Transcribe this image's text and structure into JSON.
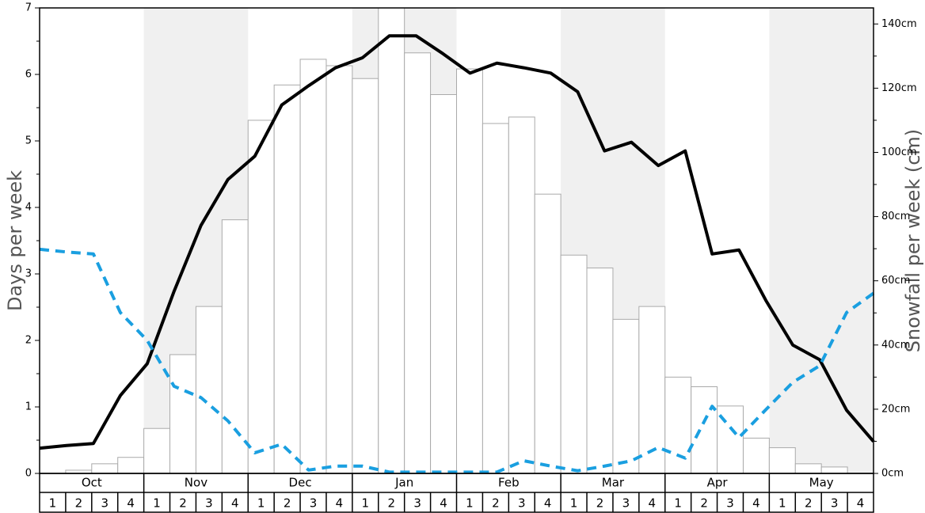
{
  "chart_data": {
    "type": "bar-line",
    "y_label": "Days per week",
    "y2_label": "Snowfall per week (cm)",
    "months": [
      "Oct",
      "Nov",
      "Dec",
      "Jan",
      "Feb",
      "Mar",
      "Apr",
      "May"
    ],
    "categories": [
      "1",
      "2",
      "3",
      "4",
      "1",
      "2",
      "3",
      "4",
      "1",
      "2",
      "3",
      "4",
      "1",
      "2",
      "3",
      "4",
      "1",
      "2",
      "3",
      "4",
      "1",
      "2",
      "3",
      "4",
      "1",
      "2",
      "3",
      "4",
      "1",
      "2",
      "3",
      "4"
    ],
    "ylim": [
      0,
      7
    ],
    "yticks": [
      0,
      1,
      2,
      3,
      4,
      5,
      6,
      7
    ],
    "y2lim": [
      0,
      145
    ],
    "y2ticks": [
      {
        "value": 0,
        "label": "0cm"
      },
      {
        "value": 20,
        "label": "20cm"
      },
      {
        "value": 40,
        "label": "40cm"
      },
      {
        "value": 60,
        "label": "60cm"
      },
      {
        "value": 80,
        "label": "80cm"
      },
      {
        "value": 100,
        "label": "100cm"
      },
      {
        "value": 120,
        "label": "120cm"
      },
      {
        "value": 140,
        "label": "140cm"
      }
    ],
    "series": [
      {
        "type": "bar",
        "axis": "y2",
        "color": "#ffffff",
        "values": [
          0,
          1,
          3,
          5,
          14,
          37,
          52,
          79,
          110,
          121,
          129,
          127,
          123,
          145,
          131,
          118,
          126,
          109,
          111,
          87,
          68,
          64,
          48,
          52,
          30,
          27,
          21,
          11,
          8,
          3,
          2,
          0
        ]
      },
      {
        "type": "line",
        "color": "#000000",
        "values": [
          0.38,
          0.42,
          0.45,
          1.17,
          1.65,
          2.74,
          3.73,
          4.42,
          4.77,
          5.54,
          5.83,
          6.1,
          6.25,
          6.58,
          6.58,
          6.31,
          6.02,
          6.17,
          6.1,
          6.02,
          5.74,
          4.85,
          4.98,
          4.63,
          4.85,
          3.3,
          3.36,
          2.6,
          1.93,
          1.71,
          0.95,
          0.48
        ]
      },
      {
        "type": "dashed-line",
        "color": "#1a9fe0",
        "values": [
          3.37,
          3.33,
          3.3,
          2.42,
          2.0,
          1.31,
          1.14,
          0.79,
          0.31,
          0.44,
          0.05,
          0.11,
          0.11,
          0.02,
          0.02,
          0.02,
          0.02,
          0.02,
          0.19,
          0.11,
          0.04,
          0.11,
          0.19,
          0.39,
          0.23,
          1.01,
          0.54,
          0.96,
          1.37,
          1.62,
          2.42,
          2.71
        ]
      }
    ]
  }
}
